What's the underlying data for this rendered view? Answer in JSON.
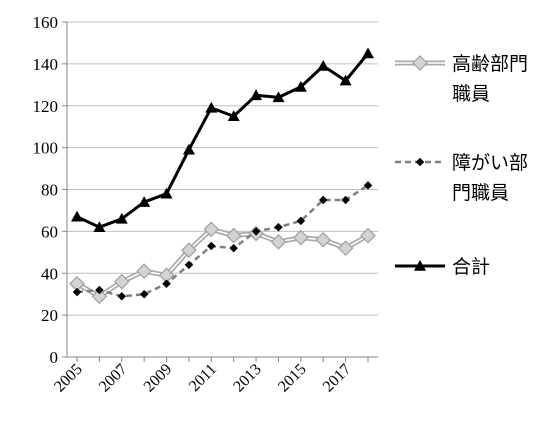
{
  "chart_data": {
    "type": "line",
    "x": [
      2005,
      2006,
      2007,
      2008,
      2009,
      2010,
      2011,
      2012,
      2013,
      2014,
      2015,
      2016,
      2017,
      2018
    ],
    "xticks": [
      "2005",
      "2007",
      "2009",
      "2011",
      "2013",
      "2015",
      "2017"
    ],
    "yticks": [
      "0",
      "20",
      "40",
      "60",
      "80",
      "100",
      "120",
      "140",
      "160"
    ],
    "ylim": [
      0,
      160
    ],
    "grid": "horizontal",
    "legend": "right",
    "series": [
      {
        "name_lines": [
          "高齢部門",
          "職員"
        ],
        "style": "double-line-diamond",
        "color": "#a9a9a9",
        "values": [
          35,
          29,
          36,
          41,
          39,
          51,
          61,
          58,
          59,
          55,
          57,
          56,
          52,
          58
        ]
      },
      {
        "name_lines": [
          "障がい部",
          "門職員"
        ],
        "style": "dashed-small-diamond",
        "color": "#7f7f7f",
        "values": [
          31,
          32,
          29,
          30,
          35,
          44,
          53,
          52,
          60,
          62,
          65,
          75,
          75,
          82
        ]
      },
      {
        "name_lines": [
          "合計"
        ],
        "style": "solid-triangle",
        "color": "#000000",
        "values": [
          67,
          62,
          66,
          74,
          78,
          99,
          119,
          115,
          125,
          124,
          129,
          139,
          132,
          145
        ]
      }
    ]
  }
}
